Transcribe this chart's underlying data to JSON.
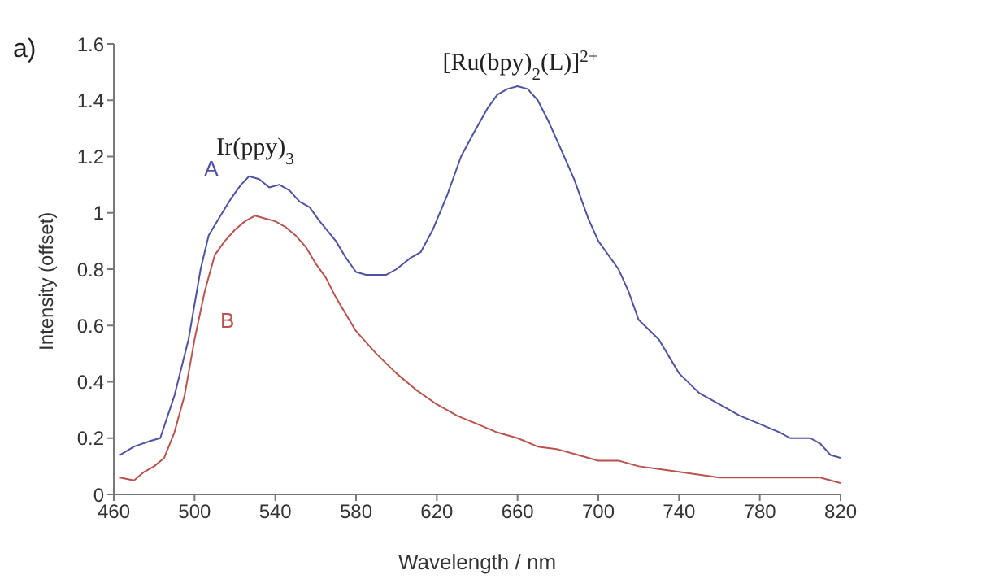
{
  "chart_data": {
    "type": "line",
    "xlabel": "Wavelength / nm",
    "ylabel": "Intensity (offset)",
    "xlim": [
      460,
      820
    ],
    "xticks": [
      460,
      500,
      540,
      580,
      620,
      660,
      700,
      740,
      780,
      820
    ],
    "ylim": [
      0,
      1.6
    ],
    "yticks": [
      0,
      0.2,
      0.4,
      0.6,
      0.8,
      1,
      1.2,
      1.4,
      1.6
    ],
    "marker": "none",
    "line_style": "solid",
    "annotations": [
      "a)",
      "Ir(ppy)$_{3}$",
      "[Ru(bpy)$_{2}$(L)]$^{2+}$"
    ],
    "series": [
      {
        "name": "A",
        "color": "#4f52a0",
        "x": [
          463,
          470,
          478,
          483,
          490,
          497,
          503,
          507,
          512,
          518,
          523,
          527,
          532,
          537,
          542,
          547,
          552,
          557,
          562,
          570,
          575,
          580,
          585,
          590,
          595,
          600,
          607,
          612,
          618,
          625,
          632,
          638,
          645,
          650,
          655,
          660,
          665,
          670,
          675,
          680,
          688,
          695,
          700,
          710,
          715,
          720,
          730,
          740,
          750,
          760,
          770,
          780,
          790,
          795,
          805,
          810,
          815,
          820
        ],
        "values": [
          0.14,
          0.17,
          0.19,
          0.2,
          0.35,
          0.55,
          0.8,
          0.92,
          0.98,
          1.05,
          1.1,
          1.13,
          1.12,
          1.09,
          1.1,
          1.08,
          1.04,
          1.02,
          0.97,
          0.9,
          0.84,
          0.79,
          0.78,
          0.78,
          0.78,
          0.8,
          0.84,
          0.86,
          0.94,
          1.06,
          1.2,
          1.28,
          1.37,
          1.42,
          1.44,
          1.45,
          1.44,
          1.4,
          1.33,
          1.25,
          1.12,
          0.98,
          0.9,
          0.8,
          0.72,
          0.62,
          0.55,
          0.43,
          0.36,
          0.32,
          0.28,
          0.25,
          0.22,
          0.2,
          0.2,
          0.18,
          0.14,
          0.13
        ]
      },
      {
        "name": "B",
        "color": "#b9534e",
        "x": [
          463,
          470,
          475,
          480,
          485,
          490,
          495,
          500,
          505,
          510,
          515,
          520,
          525,
          530,
          535,
          540,
          545,
          550,
          555,
          560,
          565,
          570,
          575,
          580,
          590,
          600,
          610,
          620,
          630,
          640,
          650,
          660,
          670,
          680,
          690,
          700,
          710,
          720,
          730,
          740,
          750,
          760,
          770,
          780,
          790,
          800,
          810,
          820
        ],
        "values": [
          0.06,
          0.05,
          0.08,
          0.1,
          0.13,
          0.22,
          0.35,
          0.55,
          0.72,
          0.85,
          0.9,
          0.94,
          0.97,
          0.99,
          0.98,
          0.97,
          0.95,
          0.92,
          0.88,
          0.82,
          0.77,
          0.7,
          0.64,
          0.58,
          0.5,
          0.43,
          0.37,
          0.32,
          0.28,
          0.25,
          0.22,
          0.2,
          0.17,
          0.16,
          0.14,
          0.12,
          0.12,
          0.1,
          0.09,
          0.08,
          0.07,
          0.06,
          0.06,
          0.06,
          0.06,
          0.06,
          0.06,
          0.04
        ]
      }
    ]
  }
}
